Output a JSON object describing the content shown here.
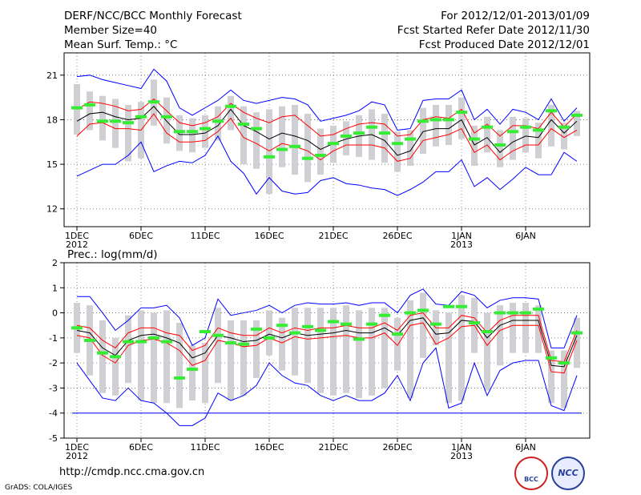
{
  "header": {
    "title": "DERF/NCC/BCC Monthly Forecast",
    "member": "Member Size=40",
    "variable": "Mean Surf. Temp.: °C",
    "period": "For 2012/12/01-2013/01/09",
    "started": "Fcst Started Refer Date 2012/11/30",
    "produced": "Fcst Produced Date 2012/12/01"
  },
  "footer": {
    "url": "http://cmdp.ncc.cma.gov.cn",
    "credit": "GrADS: COLA/IGES",
    "logo_left_text": "BCC",
    "logo_right_text": "NCC"
  },
  "colors": {
    "envelope": "#0000ff",
    "spread": "#ff0000",
    "mean": "#000000",
    "obs": "#33ee33",
    "box": "#d0d0d4"
  },
  "chart_data": [
    {
      "type": "line",
      "title": "Mean Surf. Temp.: °C",
      "xlabel_ticks": [
        "1DEC",
        "6DEC",
        "11DEC",
        "16DEC",
        "21DEC",
        "26DEC",
        "1JAN",
        "6JAN"
      ],
      "year_labels": {
        "2012": "2012",
        "2013": "2013"
      },
      "ylim": [
        10.8,
        22.5
      ],
      "yticks": [
        12,
        15,
        18,
        21
      ],
      "days": 40,
      "series": [
        {
          "name": "max",
          "values": [
            20.9,
            21.0,
            20.7,
            20.5,
            20.3,
            20.1,
            21.4,
            20.6,
            18.8,
            18.3,
            18.8,
            19.3,
            20.0,
            19.3,
            19.1,
            19.3,
            19.5,
            19.4,
            19.0,
            17.9,
            18.1,
            18.3,
            18.6,
            19.2,
            19.0,
            17.3,
            17.4,
            19.3,
            19.4,
            19.4,
            20.0,
            18.0,
            18.7,
            17.7,
            18.7,
            18.5,
            18.0,
            19.4,
            17.9,
            18.8
          ]
        },
        {
          "name": "upper",
          "values": [
            18.7,
            19.2,
            19.1,
            18.9,
            18.6,
            18.7,
            19.4,
            18.6,
            17.8,
            17.6,
            17.8,
            18.2,
            19.1,
            18.5,
            18.1,
            17.8,
            18.2,
            18.3,
            17.6,
            16.9,
            17.0,
            17.4,
            17.7,
            17.8,
            17.7,
            16.9,
            17.0,
            18.0,
            18.2,
            18.1,
            18.7,
            17.1,
            17.7,
            16.9,
            17.6,
            17.6,
            17.4,
            18.5,
            17.5,
            18.4
          ]
        },
        {
          "name": "mean",
          "values": [
            17.9,
            18.4,
            18.5,
            18.2,
            18.0,
            18.1,
            18.9,
            17.9,
            17.0,
            17.0,
            17.1,
            17.6,
            18.7,
            17.6,
            17.2,
            16.7,
            17.1,
            16.9,
            16.6,
            16.0,
            16.4,
            16.7,
            16.9,
            17.0,
            16.6,
            15.6,
            15.9,
            17.2,
            17.4,
            17.4,
            18.0,
            16.3,
            16.8,
            15.8,
            16.5,
            16.9,
            16.8,
            18.0,
            17.1,
            17.9
          ]
        },
        {
          "name": "lower",
          "values": [
            16.9,
            17.7,
            17.8,
            17.4,
            17.4,
            17.3,
            18.4,
            17.1,
            16.5,
            16.5,
            16.6,
            17.2,
            18.1,
            16.8,
            16.4,
            15.9,
            16.4,
            16.2,
            15.9,
            15.3,
            15.9,
            16.3,
            16.3,
            16.3,
            16.1,
            15.2,
            15.4,
            16.6,
            16.8,
            17.0,
            17.4,
            15.8,
            16.3,
            15.3,
            15.9,
            16.3,
            16.3,
            17.4,
            16.8,
            17.3
          ]
        },
        {
          "name": "min",
          "values": [
            14.2,
            14.6,
            15.0,
            15.0,
            15.6,
            16.5,
            14.5,
            14.9,
            15.2,
            15.1,
            15.6,
            16.9,
            15.2,
            14.4,
            13.0,
            14.1,
            13.2,
            13.0,
            13.1,
            13.9,
            14.1,
            13.7,
            13.6,
            13.4,
            13.3,
            12.9,
            13.3,
            13.8,
            14.5,
            14.5,
            15.3,
            13.5,
            14.1,
            13.3,
            14.0,
            14.8,
            14.3,
            14.3,
            15.8,
            15.2
          ]
        },
        {
          "name": "observed",
          "values": [
            18.8,
            19.0,
            17.9,
            17.9,
            17.8,
            18.2,
            19.2,
            18.2,
            17.2,
            17.2,
            17.4,
            17.9,
            18.9,
            17.7,
            17.4,
            15.5,
            16.0,
            16.2,
            15.4,
            15.6,
            16.4,
            16.9,
            17.1,
            17.5,
            17.1,
            16.4,
            16.7,
            17.9,
            18.0,
            18.0,
            18.5,
            16.7,
            17.5,
            16.3,
            17.2,
            17.5,
            17.3,
            18.6,
            17.5,
            18.3
          ]
        }
      ],
      "boxes_low": [
        17.0,
        17.3,
        16.6,
        16.1,
        15.2,
        15.4,
        17.6,
        16.4,
        15.9,
        15.8,
        16.1,
        16.6,
        17.3,
        15.0,
        14.7,
        13.0,
        14.8,
        14.3,
        13.8,
        14.3,
        15.1,
        15.6,
        15.5,
        15.3,
        15.1,
        14.5,
        14.9,
        15.7,
        16.2,
        16.3,
        16.7,
        14.9,
        15.8,
        14.8,
        15.3,
        15.8,
        15.4,
        16.2,
        16.0,
        16.9
      ],
      "boxes_high": [
        20.4,
        19.9,
        19.6,
        19.4,
        19.0,
        19.2,
        20.7,
        19.5,
        18.3,
        18.1,
        18.3,
        18.9,
        19.6,
        18.9,
        18.5,
        18.7,
        18.9,
        19.0,
        18.4,
        17.4,
        17.6,
        17.9,
        18.3,
        18.7,
        18.4,
        17.2,
        17.3,
        18.8,
        19.0,
        19.0,
        19.5,
        17.6,
        18.2,
        17.3,
        18.2,
        18.1,
        17.8,
        19.0,
        17.8,
        18.6
      ]
    },
    {
      "type": "line",
      "title": "Prec.: log(mm/d)",
      "xlabel_ticks": [
        "1DEC",
        "6DEC",
        "11DEC",
        "16DEC",
        "21DEC",
        "26DEC",
        "1JAN",
        "6JAN"
      ],
      "year_labels": {
        "2012": "2012",
        "2013": "2013"
      },
      "ylim": [
        -5,
        2
      ],
      "yticks": [
        -5,
        -4,
        -3,
        -2,
        -1,
        0,
        1,
        2
      ],
      "days": 40,
      "series": [
        {
          "name": "max",
          "values": [
            0.65,
            0.65,
            0.0,
            -0.7,
            -0.3,
            0.2,
            0.2,
            0.3,
            -0.2,
            -1.3,
            -1.0,
            0.55,
            -0.1,
            0.0,
            0.1,
            0.3,
            0.0,
            0.3,
            0.4,
            0.35,
            0.35,
            0.4,
            0.3,
            0.4,
            0.4,
            0.0,
            0.7,
            0.95,
            0.35,
            0.3,
            0.85,
            0.7,
            0.2,
            0.5,
            0.6,
            0.6,
            0.55,
            -1.4,
            -1.4,
            -0.1
          ]
        },
        {
          "name": "upper",
          "values": [
            -0.5,
            -0.6,
            -1.1,
            -1.4,
            -0.8,
            -0.6,
            -0.6,
            -0.8,
            -0.9,
            -1.5,
            -1.3,
            -0.6,
            -0.8,
            -0.9,
            -0.9,
            -0.6,
            -0.8,
            -0.6,
            -0.7,
            -0.6,
            -0.6,
            -0.5,
            -0.6,
            -0.6,
            -0.4,
            -0.7,
            -0.1,
            0.0,
            -0.6,
            -0.6,
            -0.1,
            -0.2,
            -0.8,
            -0.3,
            -0.1,
            -0.1,
            -0.1,
            -1.9,
            -1.95,
            -0.7
          ]
        },
        {
          "name": "mean",
          "values": [
            -0.7,
            -0.8,
            -1.4,
            -1.7,
            -1.1,
            -0.9,
            -0.85,
            -1.0,
            -1.2,
            -1.8,
            -1.6,
            -0.9,
            -1.0,
            -1.15,
            -1.1,
            -0.85,
            -1.0,
            -0.8,
            -0.9,
            -0.85,
            -0.8,
            -0.7,
            -0.8,
            -0.8,
            -0.6,
            -0.9,
            -0.3,
            -0.2,
            -0.85,
            -0.8,
            -0.3,
            -0.35,
            -1.0,
            -0.5,
            -0.3,
            -0.3,
            -0.3,
            -2.1,
            -2.15,
            -0.9
          ]
        },
        {
          "name": "lower",
          "values": [
            -0.9,
            -1.0,
            -1.7,
            -2.0,
            -1.3,
            -1.1,
            -1.05,
            -1.2,
            -1.5,
            -2.1,
            -1.9,
            -1.1,
            -1.2,
            -1.35,
            -1.3,
            -1.0,
            -1.2,
            -0.95,
            -1.05,
            -1.0,
            -0.95,
            -0.9,
            -1.0,
            -1.0,
            -0.8,
            -1.3,
            -0.5,
            -0.4,
            -1.25,
            -1.0,
            -0.55,
            -0.5,
            -1.3,
            -0.7,
            -0.5,
            -0.5,
            -0.5,
            -2.35,
            -2.4,
            -1.1
          ]
        },
        {
          "name": "min",
          "values": [
            -2.0,
            -2.7,
            -3.4,
            -3.5,
            -3.0,
            -3.5,
            -3.6,
            -4.0,
            -4.5,
            -4.5,
            -4.2,
            -3.2,
            -3.5,
            -3.3,
            -2.9,
            -2.0,
            -2.5,
            -2.8,
            -2.9,
            -3.3,
            -3.5,
            -3.3,
            -3.5,
            -3.5,
            -3.2,
            -2.5,
            -3.5,
            -2.0,
            -1.4,
            -3.8,
            -3.6,
            -2.0,
            -3.3,
            -2.3,
            -2.0,
            -1.9,
            -1.9,
            -3.7,
            -3.9,
            -2.5
          ]
        },
        {
          "name": "observed",
          "values": [
            -0.6,
            -1.1,
            -1.6,
            -1.75,
            -1.15,
            -1.15,
            -1.0,
            -1.15,
            -2.6,
            -2.25,
            -0.75,
            -0.9,
            -1.2,
            -1.25,
            -0.65,
            -1.0,
            -0.5,
            -0.8,
            -0.55,
            -0.7,
            -0.35,
            -0.45,
            -1.05,
            -0.45,
            -0.1,
            -0.85,
            0.0,
            0.1,
            -0.45,
            0.25,
            0.25,
            -0.4,
            -0.75,
            0.0,
            0.0,
            0.0,
            0.15,
            -1.8,
            -2.0,
            -0.8
          ]
        }
      ],
      "floor_line": -4,
      "boxes_low": [
        -1.6,
        -2.5,
        -3.2,
        -3.3,
        -2.8,
        -3.5,
        -3.6,
        -3.6,
        -3.8,
        -3.5,
        -3.6,
        -2.8,
        -3.5,
        -3.3,
        -2.6,
        -1.7,
        -2.3,
        -2.5,
        -2.8,
        -3.2,
        -3.3,
        -3.2,
        -3.4,
        -3.3,
        -3.0,
        -2.3,
        -3.4,
        -1.8,
        -1.3,
        -3.6,
        -3.5,
        -1.6,
        -3.1,
        -2.1,
        -1.6,
        -1.6,
        -1.6,
        -3.6,
        -3.8,
        -2.2
      ],
      "boxes_high": [
        0.4,
        0.3,
        -0.3,
        -1.0,
        -0.1,
        0.1,
        0.0,
        0.1,
        -0.4,
        -1.3,
        -1.2,
        0.2,
        -0.3,
        -0.3,
        -0.3,
        0.1,
        -0.2,
        0.2,
        0.2,
        0.2,
        0.2,
        0.3,
        0.1,
        0.2,
        0.2,
        -0.2,
        0.5,
        0.8,
        0.1,
        0.0,
        0.7,
        0.6,
        0.0,
        0.3,
        0.4,
        0.4,
        0.3,
        -1.5,
        -1.5,
        -0.2
      ]
    }
  ]
}
